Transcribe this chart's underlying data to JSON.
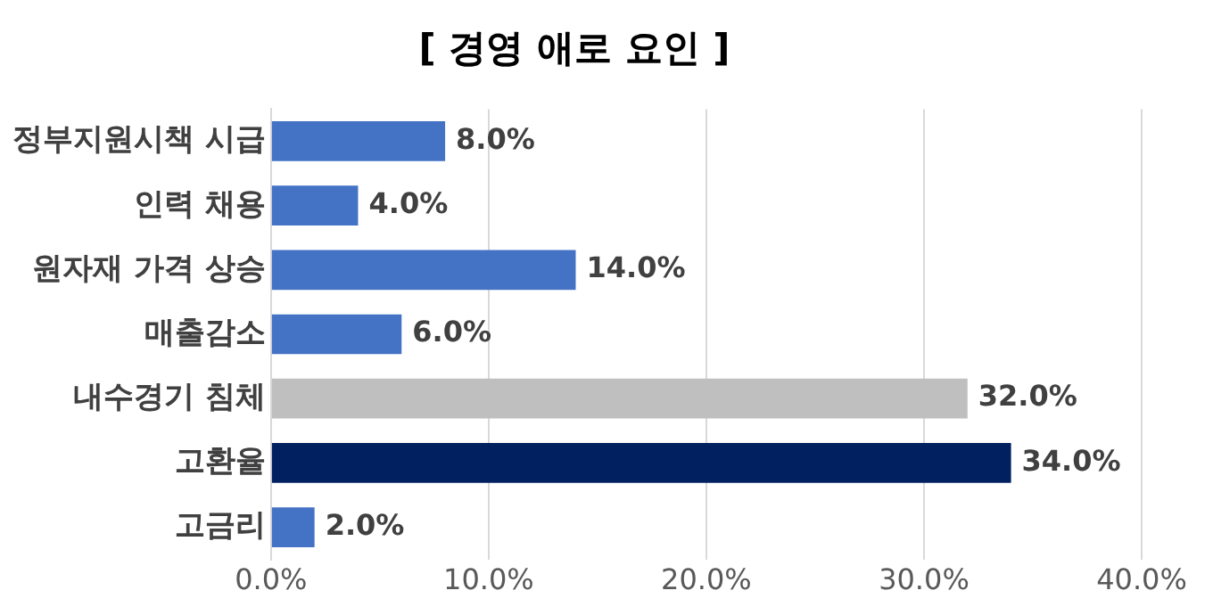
{
  "chart_data": {
    "type": "bar",
    "orientation": "horizontal",
    "title": "[ 경영 애로 요인 ]",
    "categories": [
      "정부지원시책 시급",
      "인력 채용",
      "원자재 가격 상승",
      "매출감소",
      "내수경기 침체",
      "고환율",
      "고금리"
    ],
    "values": [
      8,
      4,
      14,
      6,
      32,
      34,
      2
    ],
    "colors": [
      "#4472c4",
      "#4472c4",
      "#4472c4",
      "#4472c4",
      "#bfbfbf",
      "#002060",
      "#4472c4"
    ],
    "value_labels": [
      "8.0%",
      "4.0%",
      "14.0%",
      "6.0%",
      "32.0%",
      "34.0%",
      "2.0%"
    ],
    "xlim": [
      0,
      40
    ],
    "xticks": [
      {
        "value": 0,
        "label": "0.0%"
      },
      {
        "value": 10,
        "label": "10.0%"
      },
      {
        "value": 20,
        "label": "20.0%"
      },
      {
        "value": 30,
        "label": "30.0%"
      },
      {
        "value": 40,
        "label": "40.0%"
      }
    ],
    "grid": "x",
    "legend": false
  }
}
